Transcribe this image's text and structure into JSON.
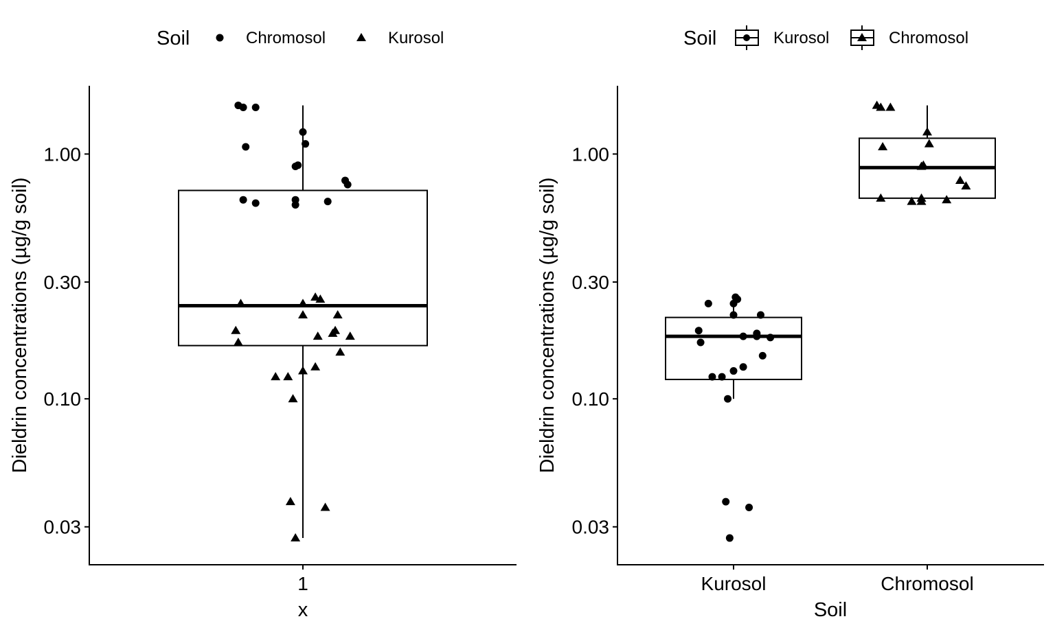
{
  "chart_data": [
    {
      "type": "boxplot",
      "panel": "left",
      "xlabel": "x",
      "ylabel": "Dieldrin concentrations (µg/g soil)",
      "y_scale": "log10",
      "ylim": [
        0.021,
        1.9
      ],
      "y_ticks": [
        0.03,
        0.1,
        0.3,
        1.0
      ],
      "y_tick_labels": [
        "0.03",
        "0.10",
        "0.30",
        "1.00"
      ],
      "categories": [
        "1"
      ],
      "legend": {
        "title": "Soil",
        "position": "top",
        "entries": [
          {
            "label": "Chromosol",
            "shape": "circle"
          },
          {
            "label": "Kurosol",
            "shape": "triangle"
          }
        ]
      },
      "boxes": [
        {
          "category": "1",
          "q1": 0.165,
          "median": 0.24,
          "q3": 0.71,
          "whisker_low": 0.027,
          "whisker_high": 1.58
        }
      ],
      "series": [
        {
          "name": "Chromosol",
          "shape": "circle",
          "points": [
            {
              "x": 0.74,
              "y": 1.58
            },
            {
              "x": 0.76,
              "y": 1.55
            },
            {
              "x": 0.81,
              "y": 1.55
            },
            {
              "x": 1.0,
              "y": 1.23
            },
            {
              "x": 1.01,
              "y": 1.1
            },
            {
              "x": 0.77,
              "y": 1.07
            },
            {
              "x": 0.97,
              "y": 0.89
            },
            {
              "x": 0.98,
              "y": 0.9
            },
            {
              "x": 1.17,
              "y": 0.78
            },
            {
              "x": 1.18,
              "y": 0.75
            },
            {
              "x": 0.76,
              "y": 0.65
            },
            {
              "x": 0.81,
              "y": 0.63
            },
            {
              "x": 0.97,
              "y": 0.65
            },
            {
              "x": 0.97,
              "y": 0.62
            },
            {
              "x": 1.1,
              "y": 0.64
            }
          ]
        },
        {
          "name": "Kurosol",
          "shape": "triangle",
          "points": [
            {
              "x": 0.75,
              "y": 0.245
            },
            {
              "x": 1.0,
              "y": 0.245
            },
            {
              "x": 1.05,
              "y": 0.26
            },
            {
              "x": 1.07,
              "y": 0.255
            },
            {
              "x": 1.14,
              "y": 0.22
            },
            {
              "x": 1.0,
              "y": 0.22
            },
            {
              "x": 0.73,
              "y": 0.19
            },
            {
              "x": 0.74,
              "y": 0.17
            },
            {
              "x": 1.06,
              "y": 0.18
            },
            {
              "x": 1.12,
              "y": 0.185
            },
            {
              "x": 1.13,
              "y": 0.19
            },
            {
              "x": 1.19,
              "y": 0.18
            },
            {
              "x": 1.15,
              "y": 0.155
            },
            {
              "x": 1.05,
              "y": 0.135
            },
            {
              "x": 1.0,
              "y": 0.13
            },
            {
              "x": 0.89,
              "y": 0.123
            },
            {
              "x": 0.94,
              "y": 0.123
            },
            {
              "x": 0.96,
              "y": 0.1
            },
            {
              "x": 0.95,
              "y": 0.038
            },
            {
              "x": 1.09,
              "y": 0.036
            },
            {
              "x": 0.97,
              "y": 0.027
            }
          ]
        }
      ]
    },
    {
      "type": "boxplot",
      "panel": "right",
      "xlabel": "Soil",
      "ylabel": "Dieldrin concentrations (µg/g soil)",
      "y_scale": "log10",
      "ylim": [
        0.021,
        1.9
      ],
      "y_ticks": [
        0.03,
        0.1,
        0.3,
        1.0
      ],
      "y_tick_labels": [
        "0.03",
        "0.10",
        "0.30",
        "1.00"
      ],
      "categories": [
        "Kurosol",
        "Chromosol"
      ],
      "legend": {
        "title": "Soil",
        "position": "top",
        "entries": [
          {
            "label": "Kurosol",
            "shape": "circle"
          },
          {
            "label": "Chromosol",
            "shape": "triangle"
          }
        ]
      },
      "boxes": [
        {
          "category": "Kurosol",
          "q1": 0.12,
          "median": 0.18,
          "q3": 0.215,
          "whisker_low": 0.1,
          "whisker_high": 0.25
        },
        {
          "category": "Chromosol",
          "q1": 0.66,
          "median": 0.88,
          "q3": 1.16,
          "whisker_low": 0.66,
          "whisker_high": 1.58
        }
      ],
      "series": [
        {
          "name": "Kurosol",
          "shape": "circle",
          "points": [
            {
              "x": 1.01,
              "y": 0.26
            },
            {
              "x": 1.02,
              "y": 0.255
            },
            {
              "x": 0.87,
              "y": 0.245
            },
            {
              "x": 1.0,
              "y": 0.245
            },
            {
              "x": 1.0,
              "y": 0.22
            },
            {
              "x": 1.14,
              "y": 0.22
            },
            {
              "x": 0.82,
              "y": 0.19
            },
            {
              "x": 1.12,
              "y": 0.185
            },
            {
              "x": 1.12,
              "y": 0.18
            },
            {
              "x": 1.05,
              "y": 0.18
            },
            {
              "x": 1.19,
              "y": 0.178
            },
            {
              "x": 0.83,
              "y": 0.17
            },
            {
              "x": 1.15,
              "y": 0.15
            },
            {
              "x": 1.05,
              "y": 0.135
            },
            {
              "x": 1.0,
              "y": 0.13
            },
            {
              "x": 0.89,
              "y": 0.123
            },
            {
              "x": 0.94,
              "y": 0.123
            },
            {
              "x": 0.97,
              "y": 0.1
            },
            {
              "x": 0.96,
              "y": 0.038
            },
            {
              "x": 1.08,
              "y": 0.036
            },
            {
              "x": 0.98,
              "y": 0.027
            }
          ]
        },
        {
          "name": "Chromosol",
          "shape": "triangle",
          "points": [
            {
              "x": 0.74,
              "y": 1.58
            },
            {
              "x": 0.76,
              "y": 1.55
            },
            {
              "x": 0.81,
              "y": 1.55
            },
            {
              "x": 1.0,
              "y": 1.23
            },
            {
              "x": 1.01,
              "y": 1.1
            },
            {
              "x": 0.77,
              "y": 1.07
            },
            {
              "x": 0.97,
              "y": 0.89
            },
            {
              "x": 0.98,
              "y": 0.9
            },
            {
              "x": 1.17,
              "y": 0.78
            },
            {
              "x": 1.2,
              "y": 0.74
            },
            {
              "x": 0.76,
              "y": 0.66
            },
            {
              "x": 0.92,
              "y": 0.64
            },
            {
              "x": 0.97,
              "y": 0.66
            },
            {
              "x": 0.97,
              "y": 0.64
            },
            {
              "x": 1.1,
              "y": 0.65
            }
          ]
        }
      ]
    }
  ]
}
